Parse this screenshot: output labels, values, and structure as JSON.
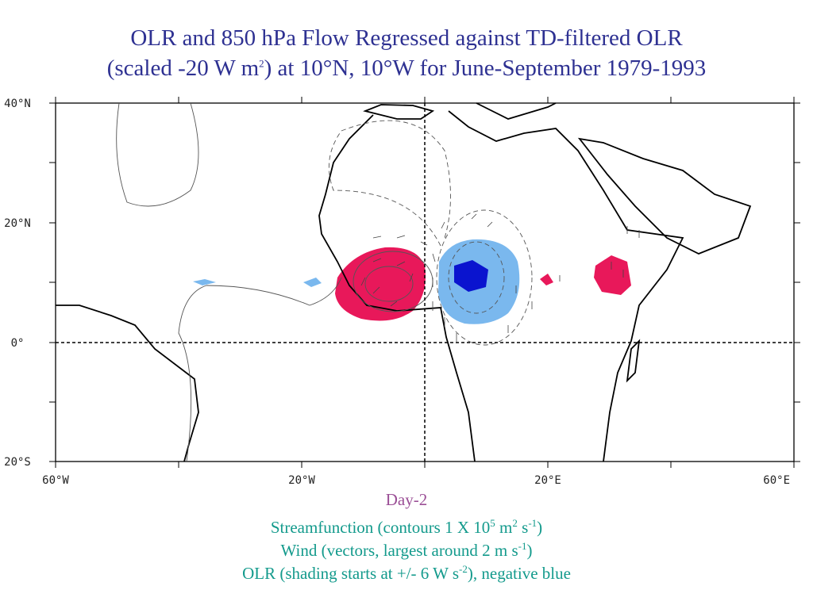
{
  "title": {
    "line1": "OLR and 850 hPa Flow Regressed against TD-filtered OLR",
    "line2": [
      "(scaled -20 W m",
      "2",
      ") at 10°N, 10°W for June-September 1979-1993"
    ]
  },
  "map": {
    "lat_labels": [
      "40°N",
      "20°N",
      "0°",
      "20°S"
    ],
    "lon_labels": [
      "60°W",
      "20°W",
      "20°E",
      "60°E"
    ]
  },
  "day_label": "Day-2",
  "captions": [
    [
      "Streamfunction (contours 1 X 10",
      "5",
      " m",
      "2",
      " s",
      "-1",
      ")"
    ],
    [
      "Wind (vectors, largest around 2 m s",
      "-1",
      ")"
    ],
    [
      "OLR (shading starts at +/- 6 W s",
      "-2",
      "), negative blue"
    ]
  ]
}
